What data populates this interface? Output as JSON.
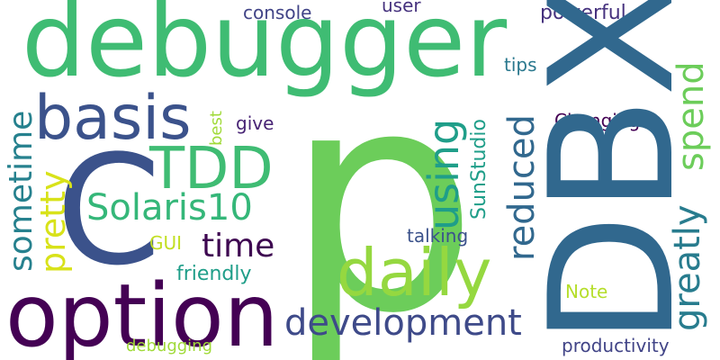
{
  "words": [
    {
      "text": "p",
      "color": "#6ccd5a"
    },
    {
      "text": "debugger",
      "color": "#3fbc73"
    },
    {
      "text": "DBX",
      "color": "#31688e"
    },
    {
      "text": "option",
      "color": "#440154"
    },
    {
      "text": "C",
      "color": "#3b528b"
    },
    {
      "text": "basis",
      "color": "#3b528b"
    },
    {
      "text": "TDD",
      "color": "#3fbc73"
    },
    {
      "text": "daily",
      "color": "#95d840"
    },
    {
      "text": "development",
      "color": "#3e4a89"
    },
    {
      "text": "Solaris10",
      "color": "#35b779"
    },
    {
      "text": "time",
      "color": "#3e0751"
    },
    {
      "text": "using",
      "color": "#1f9e89"
    },
    {
      "text": "reduced",
      "color": "#31688e"
    },
    {
      "text": "spend",
      "color": "#6ccd5a"
    },
    {
      "text": "greatly",
      "color": "#287c8e"
    },
    {
      "text": "sometime",
      "color": "#26818e"
    },
    {
      "text": "pretty",
      "color": "#d8e219"
    },
    {
      "text": "SunStudio",
      "color": "#1f9e89"
    },
    {
      "text": "console",
      "color": "#414487"
    },
    {
      "text": "user",
      "color": "#46327e"
    },
    {
      "text": "powerful",
      "color": "#46327e"
    },
    {
      "text": "tips",
      "color": "#2a788e"
    },
    {
      "text": "Changing",
      "color": "#440154"
    },
    {
      "text": "best",
      "color": "#a0da39"
    },
    {
      "text": "give",
      "color": "#482475"
    },
    {
      "text": "GUI",
      "color": "#c2df23"
    },
    {
      "text": "talking",
      "color": "#3b528b"
    },
    {
      "text": "friendly",
      "color": "#1f9e89"
    },
    {
      "text": "Note",
      "color": "#b5de2b"
    },
    {
      "text": "debugging",
      "color": "#a0da39"
    },
    {
      "text": "productivity",
      "color": "#414487"
    }
  ]
}
